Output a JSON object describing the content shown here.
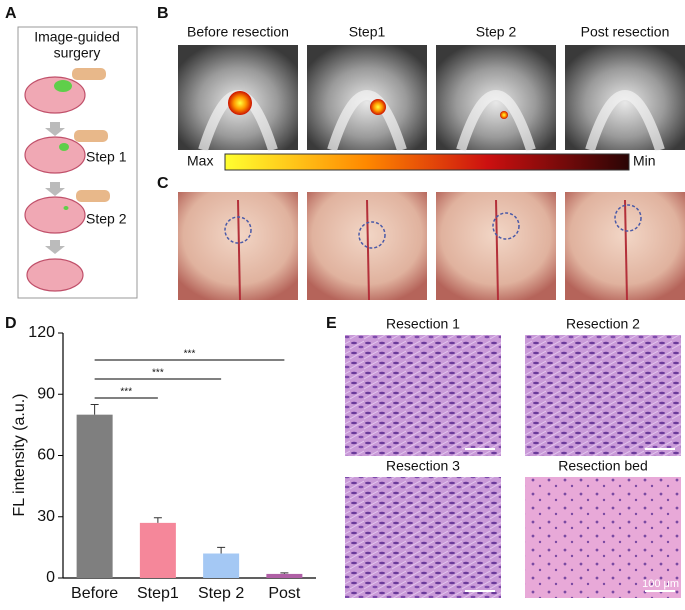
{
  "panel_labels": [
    "A",
    "B",
    "C",
    "D",
    "E"
  ],
  "panel_a": {
    "title_lines": [
      "Image-guided",
      "surgery"
    ],
    "steps": [
      "Step 1",
      "Step 2"
    ]
  },
  "panel_b": {
    "titles": [
      "Before resection",
      "Step1",
      "Step 2",
      "Post resection"
    ],
    "colorbar": {
      "max_label": "Max",
      "min_label": "Min"
    }
  },
  "chart_data": {
    "type": "bar",
    "y_label": "FL intensity (a.u.)",
    "categories": [
      "Before",
      "Step1",
      "Step 2",
      "Post"
    ],
    "values": [
      80,
      27,
      12,
      2
    ],
    "errors": [
      5,
      2.5,
      3,
      0.5
    ],
    "colors": [
      "#7f7f7f",
      "#f5879a",
      "#a4c8f4",
      "#b060a6"
    ],
    "ylim": [
      0,
      120
    ],
    "yticks": [
      0,
      30,
      60,
      90,
      120
    ],
    "significance": [
      "***",
      "***",
      "***"
    ]
  },
  "panel_e": {
    "titles": [
      "Resection 1",
      "Resection 2",
      "Resection 3",
      "Resection bed"
    ],
    "scale_bar": "100 μm"
  }
}
